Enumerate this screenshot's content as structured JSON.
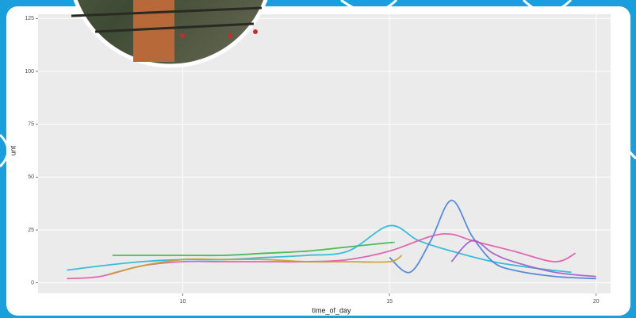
{
  "chart_data": {
    "type": "line",
    "x_label": "time_of_day",
    "y_label": "unt",
    "xlim": [
      6.5,
      20.35
    ],
    "ylim": [
      -5,
      127
    ],
    "xticks": [
      10,
      15,
      20
    ],
    "yticks": [
      0,
      25,
      50,
      75,
      100,
      125
    ],
    "grid": true,
    "background": "#ebebeb",
    "series": [
      {
        "color": "#3cb44b",
        "x": [
          8.3,
          9,
          10,
          11,
          12,
          13,
          14,
          15,
          15.1
        ],
        "values": [
          13,
          13,
          13,
          13,
          14,
          15,
          17,
          19,
          19
        ]
      },
      {
        "color": "#22b8d8",
        "x": [
          7.2,
          8,
          9,
          10,
          11,
          12,
          13,
          14,
          15,
          15.7,
          16.5,
          17.5,
          18.5,
          19.4
        ],
        "values": [
          6,
          8,
          10,
          11,
          11,
          12,
          13,
          15,
          27,
          20,
          15,
          10,
          7,
          5
        ]
      },
      {
        "color": "#4b7fd6",
        "x": [
          15,
          15.5,
          16,
          16.5,
          17,
          17.5,
          18,
          19,
          20
        ],
        "values": [
          12,
          5,
          20,
          39,
          22,
          10,
          6,
          3,
          2
        ]
      },
      {
        "color": "#e05aa8",
        "x": [
          7.2,
          8,
          9,
          10,
          11,
          12,
          13,
          14,
          15,
          16,
          16.5,
          17,
          18,
          19,
          19.5
        ],
        "values": [
          2,
          3,
          8,
          10,
          10,
          10,
          10,
          11,
          15,
          22,
          23,
          20,
          15,
          10,
          14
        ]
      },
      {
        "color": "#a05cc8",
        "x": [
          16.5,
          17,
          17.5,
          18,
          19,
          20
        ],
        "values": [
          10,
          20,
          14,
          10,
          5,
          3
        ]
      },
      {
        "color": "#c8a030",
        "x": [
          8.2,
          9,
          10,
          11,
          12,
          13,
          14,
          15,
          15.3
        ],
        "values": [
          4,
          8,
          11,
          11,
          11,
          10,
          10,
          10,
          13
        ]
      }
    ]
  }
}
